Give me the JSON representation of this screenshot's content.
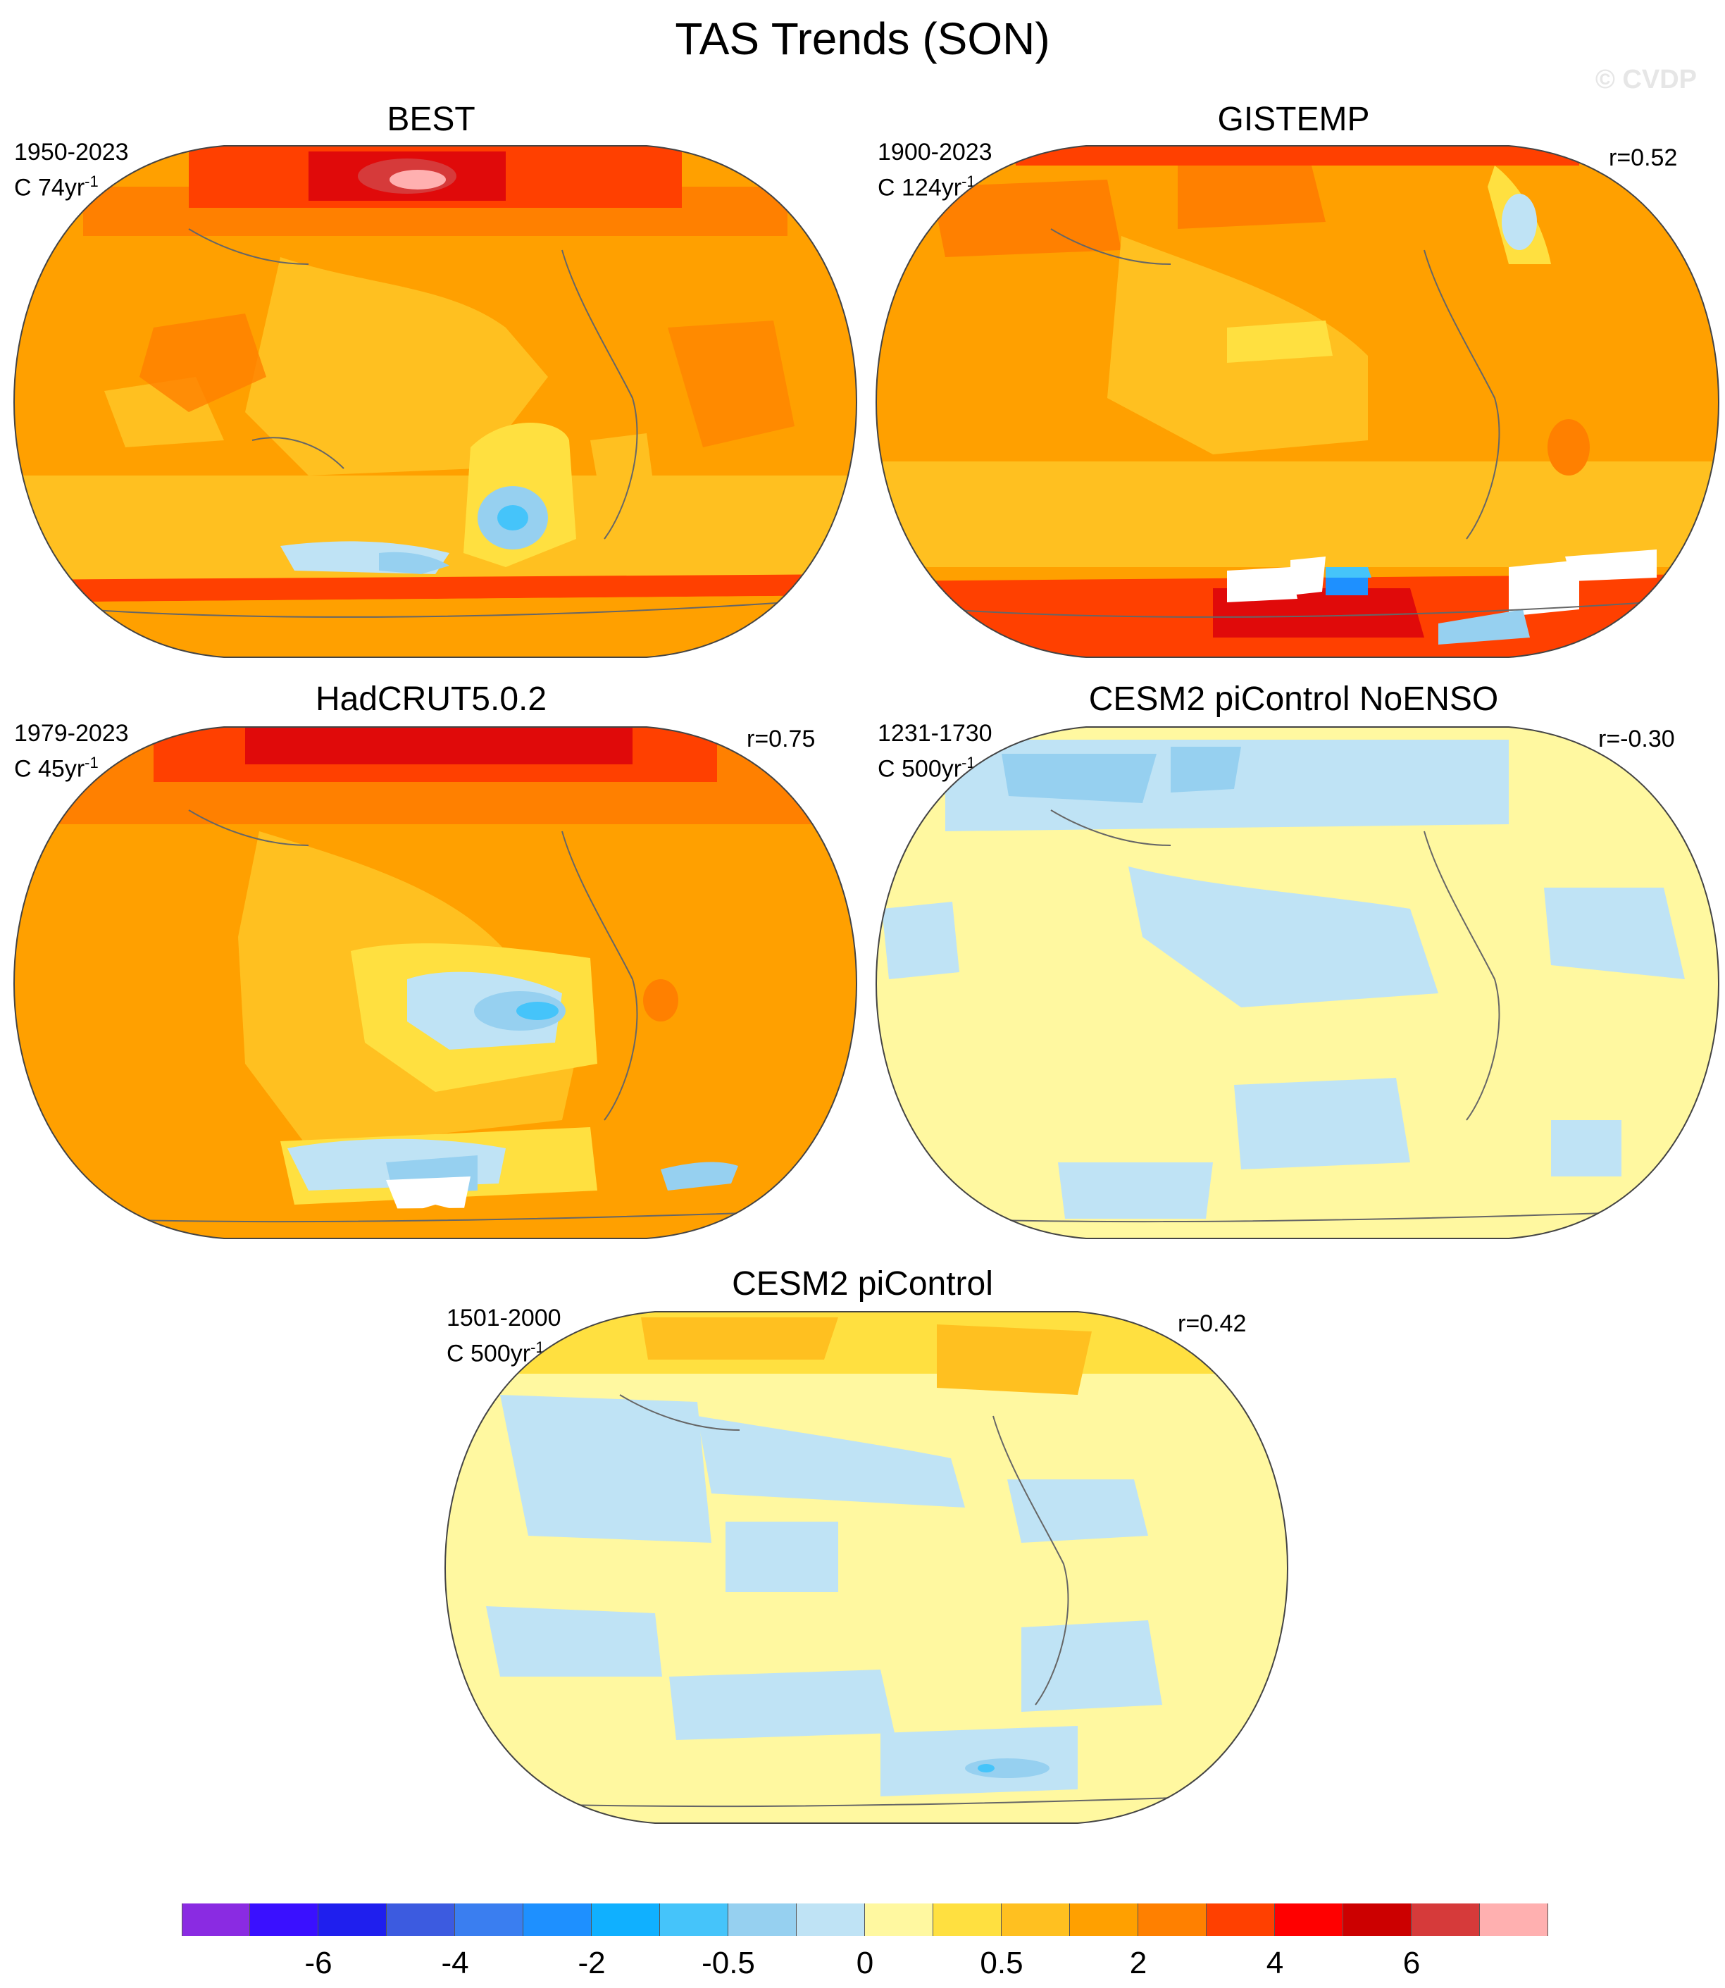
{
  "title": "TAS Trends (SON)",
  "watermark": "© CVDP",
  "panels": [
    {
      "name": "BEST",
      "period": "1950-2023",
      "trend_unit_base": "C 74yr",
      "trend_unit_exp": "-1",
      "corr": ""
    },
    {
      "name": "GISTEMP",
      "period": "1900-2023",
      "trend_unit_base": "C 124yr",
      "trend_unit_exp": "-1",
      "corr": "r=0.52"
    },
    {
      "name": "HadCRUT5.0.2",
      "period": "1979-2023",
      "trend_unit_base": "C 45yr",
      "trend_unit_exp": "-1",
      "corr": "r=0.75"
    },
    {
      "name": "CESM2 piControl NoENSO",
      "period": "1231-1730",
      "trend_unit_base": "C 500yr",
      "trend_unit_exp": "-1",
      "corr": "r=-0.30"
    },
    {
      "name": "CESM2 piControl",
      "period": "1501-2000",
      "trend_unit_base": "C 500yr",
      "trend_unit_exp": "-1",
      "corr": "r=0.42"
    }
  ],
  "colorbar": {
    "colors": [
      "#8a2be2",
      "#3a10ff",
      "#1f1fee",
      "#3c5be0",
      "#3a7ef0",
      "#1e90ff",
      "#10b0ff",
      "#45c4fa",
      "#96d0f0",
      "#bfe3f5",
      "#fff8a0",
      "#ffe040",
      "#ffc020",
      "#ffa000",
      "#ff8000",
      "#ff4000",
      "#ff0000",
      "#cc0000",
      "#d63a3a",
      "#ffb0b0"
    ],
    "labels": [
      "-6",
      "-4",
      "-2",
      "-0.5",
      "0",
      "0.5",
      "2",
      "4",
      "6"
    ],
    "label_positions": [
      2,
      4,
      6,
      8,
      10,
      12,
      14,
      16,
      18
    ]
  },
  "colors": {
    "deep_red": "#e00a0a",
    "red": "#ff4000",
    "dark_orange": "#ff8000",
    "orange": "#ffa000",
    "yellow_orange": "#ffc020",
    "yellow": "#ffe040",
    "pale_yellow": "#fff8a0",
    "pale_blue": "#bfe3f5",
    "light_blue": "#96d0f0",
    "blue": "#45c4fa",
    "missing": "#ffffff"
  }
}
